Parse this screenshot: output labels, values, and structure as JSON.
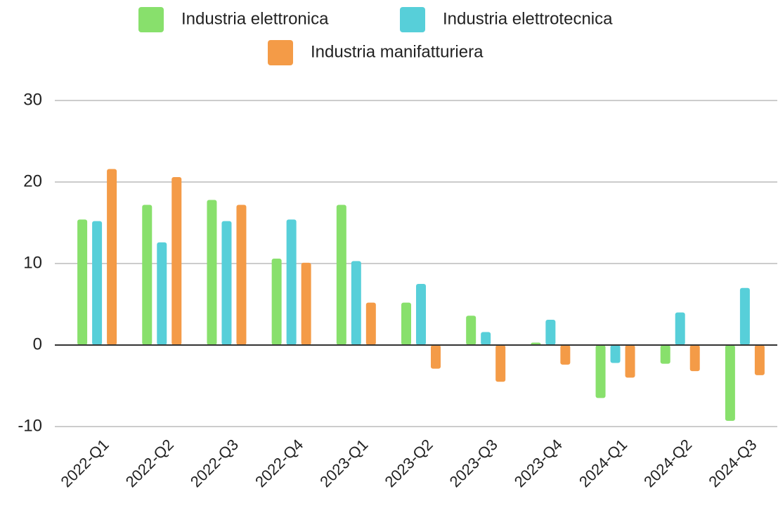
{
  "chart_data": {
    "type": "bar",
    "categories": [
      "2022-Q1",
      "2022-Q2",
      "2022-Q3",
      "2022-Q4",
      "2023-Q1",
      "2023-Q2",
      "2023-Q3",
      "2023-Q4",
      "2024-Q1",
      "2024-Q2",
      "2024-Q3"
    ],
    "series": [
      {
        "name": "Industria elettronica",
        "color": "#88e06c",
        "values": [
          15.4,
          17.2,
          17.8,
          10.6,
          17.2,
          5.2,
          3.6,
          0.3,
          -6.5,
          -2.3,
          -9.3
        ]
      },
      {
        "name": "Industria elettrotecnica",
        "color": "#57cfd9",
        "values": [
          15.2,
          12.6,
          15.2,
          15.4,
          10.3,
          7.5,
          1.6,
          3.1,
          -2.2,
          4.0,
          7.0
        ]
      },
      {
        "name": "Industria manifatturiera",
        "color": "#f49b47",
        "values": [
          21.6,
          20.6,
          17.2,
          10.1,
          5.2,
          -2.9,
          -4.5,
          -2.4,
          -4.0,
          -3.2,
          -3.7
        ]
      }
    ],
    "ylim": [
      -10,
      30
    ],
    "yticks": [
      -10,
      0,
      10,
      20,
      30
    ],
    "grid": true
  }
}
